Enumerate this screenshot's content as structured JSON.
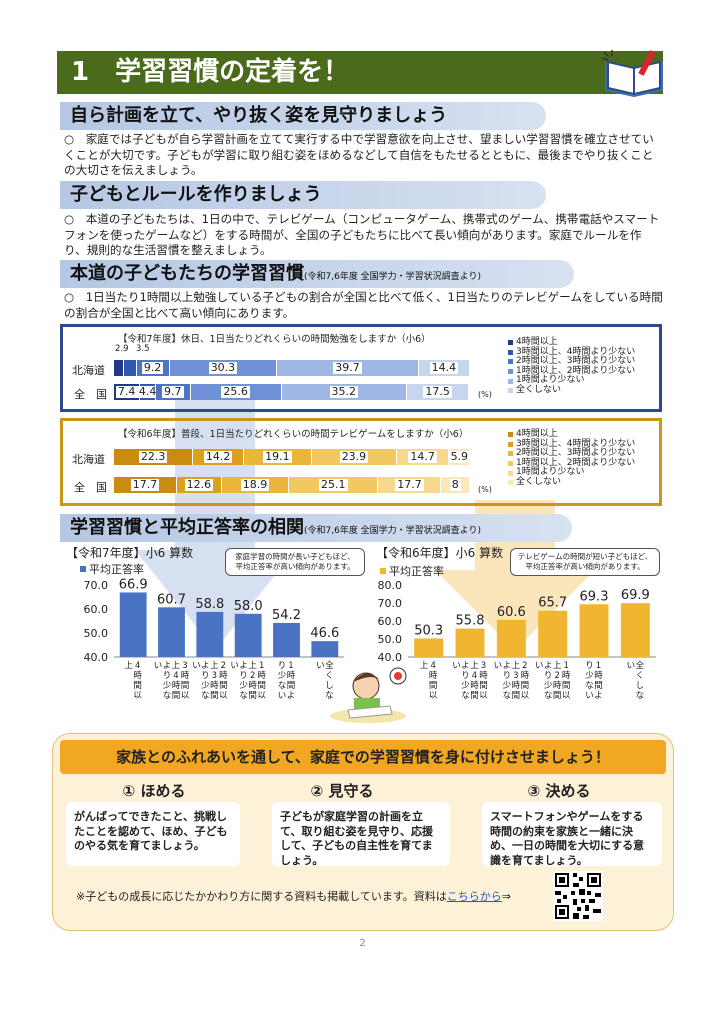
{
  "title": "1　学習習慣の定着を！",
  "sections": {
    "s1": {
      "heading": "自ら計画を立て、やり抜く姿を見守りましょう",
      "body": "○　家庭では子どもが自ら学習計画を立てて実行する中で学習意欲を向上させ、望ましい学習習慣を確立させていくことが大切です。子どもが学習に取り組む姿をほめるなどして自信をもたせるとともに、最後までやり抜くことの大切さを伝えましょう。"
    },
    "s2": {
      "heading": "子どもとルールを作りましょう",
      "body": "○　本道の子どもたちは、1日の中で、テレビゲーム（コンピュータゲーム、携帯式のゲーム、携帯電話やスマートフォンを使ったゲームなど）をする時間が、全国の子どもたちに比べて長い傾向があります。家庭でルールを作り、規則的な生活習慣を整えましょう。"
    },
    "s3": {
      "heading": "本道の子どもたちの学習習慣",
      "sub": "(令和7,6年度 全国学力・学習状況調査より)",
      "body": "○　1日当たり1時間以上勉強している子どもの割合が全国と比べて低く、1日当たりのテレビゲームをしている時間の割合が全国と比べて高い傾向にあります。"
    },
    "s4": {
      "heading": "学習習慣と平均正答率の相関",
      "sub": "(令和7,6年度 全国学力・学習状況調査より)"
    }
  },
  "chart_data": [
    {
      "type": "bar",
      "title": "【令和7年度】休日、1日当たりどれくらいの時間勉強をしますか（小6）",
      "categories": [
        "北海道",
        "全　国"
      ],
      "series": [
        {
          "name": "4時間以上",
          "values": [
            2.9,
            7.4
          ]
        },
        {
          "name": "3時間以上、4時間より少ない",
          "values": [
            3.5,
            4.4
          ]
        },
        {
          "name": "2時間以上、3時間より少ない",
          "values": [
            9.2,
            9.7
          ]
        },
        {
          "name": "1時間以上、2時間より少ない",
          "values": [
            30.3,
            25.6
          ]
        },
        {
          "name": "1時間より少ない",
          "values": [
            39.7,
            35.2
          ]
        },
        {
          "name": "全くしない",
          "values": [
            14.4,
            17.5
          ]
        }
      ],
      "unit": "(%)",
      "colors": [
        "#1f3a86",
        "#2f58b4",
        "#4d74c7",
        "#6f92d6",
        "#9fb7e3",
        "#c7d5ef"
      ]
    },
    {
      "type": "bar",
      "title": "【令和6年度】普段、1日当たりどれくらいの時間テレビゲームをしますか（小6）",
      "categories": [
        "北海道",
        "全　国"
      ],
      "series": [
        {
          "name": "4時間以上",
          "values": [
            22.3,
            17.7
          ]
        },
        {
          "name": "3時間以上、4時間より少ない",
          "values": [
            14.2,
            12.6
          ]
        },
        {
          "name": "2時間以上、3時間より少ない",
          "values": [
            19.1,
            18.9
          ]
        },
        {
          "name": "1時間以上、2時間より少ない",
          "values": [
            23.9,
            25.1
          ]
        },
        {
          "name": "1時間より少ない",
          "values": [
            14.7,
            17.7
          ]
        },
        {
          "name": "全くしない",
          "values": [
            5.9,
            8.0
          ]
        }
      ],
      "unit": "(%)",
      "colors": [
        "#c98b12",
        "#dc9f1e",
        "#e9b53b",
        "#f2c860",
        "#f6d98c",
        "#fae8b8"
      ]
    },
    {
      "type": "bar",
      "title": "【令和7年度】小6 算数",
      "legend": "平均正答率",
      "categories": [
        "4時間以上",
        "3時間以上、4時間より少ない",
        "2時間以上、3時間より少ない",
        "1時間以上、2時間より少ない",
        "1時間より少ない",
        "全くしない"
      ],
      "values": [
        66.9,
        60.7,
        58.8,
        58.0,
        54.2,
        46.6
      ],
      "ylim": [
        40,
        70
      ],
      "yticks": [
        "70.0",
        "60.0",
        "50.0",
        "40.0"
      ],
      "color": "#4a73c4",
      "callout": "家庭学習の時間が長い子どもほど、平均正答率が高い傾向があります。"
    },
    {
      "type": "bar",
      "title": "【令和6年度】小6 算数",
      "legend": "平均正答率",
      "categories": [
        "4時間以上",
        "3時間以上、4時間より少ない",
        "2時間以上、3時間より少ない",
        "1時間以上、2時間より少ない",
        "1時間より少ない",
        "全くしない"
      ],
      "values": [
        50.3,
        55.8,
        60.6,
        65.7,
        69.3,
        69.9
      ],
      "ylim": [
        40,
        80
      ],
      "yticks": [
        "80.0",
        "70.0",
        "60.0",
        "50.0",
        "40.0"
      ],
      "color": "#f1b62f",
      "callout": "テレビゲームの時間が短い子どもほど、平均正答率が高い傾向があります。"
    }
  ],
  "family": {
    "banner": "家族とのふれあいを通して、家庭での学習習慣を身に付けさせましょう！",
    "tips": [
      {
        "head": "① ほめる",
        "body": "がんばってできたこと、挑戦したことを認めて、ほめ、子どものやる気を育てましょう。"
      },
      {
        "head": "② 見守る",
        "body": "子どもが家庭学習の計画を立て、取り組む姿を見守り、応援して、子どもの自主性を育てましょう。"
      },
      {
        "head": "③ 決める",
        "body": "スマートフォンやゲームをする時間の約束を家族と一緒に決め、一日の時間を大切にする意識を育てましょう。"
      }
    ],
    "note_prefix": "※子どもの成長に応じたかかわり方に関する資料も掲載しています。資料は",
    "note_link": "こちらから",
    "note_suffix": "⇒"
  },
  "page_number": "2"
}
